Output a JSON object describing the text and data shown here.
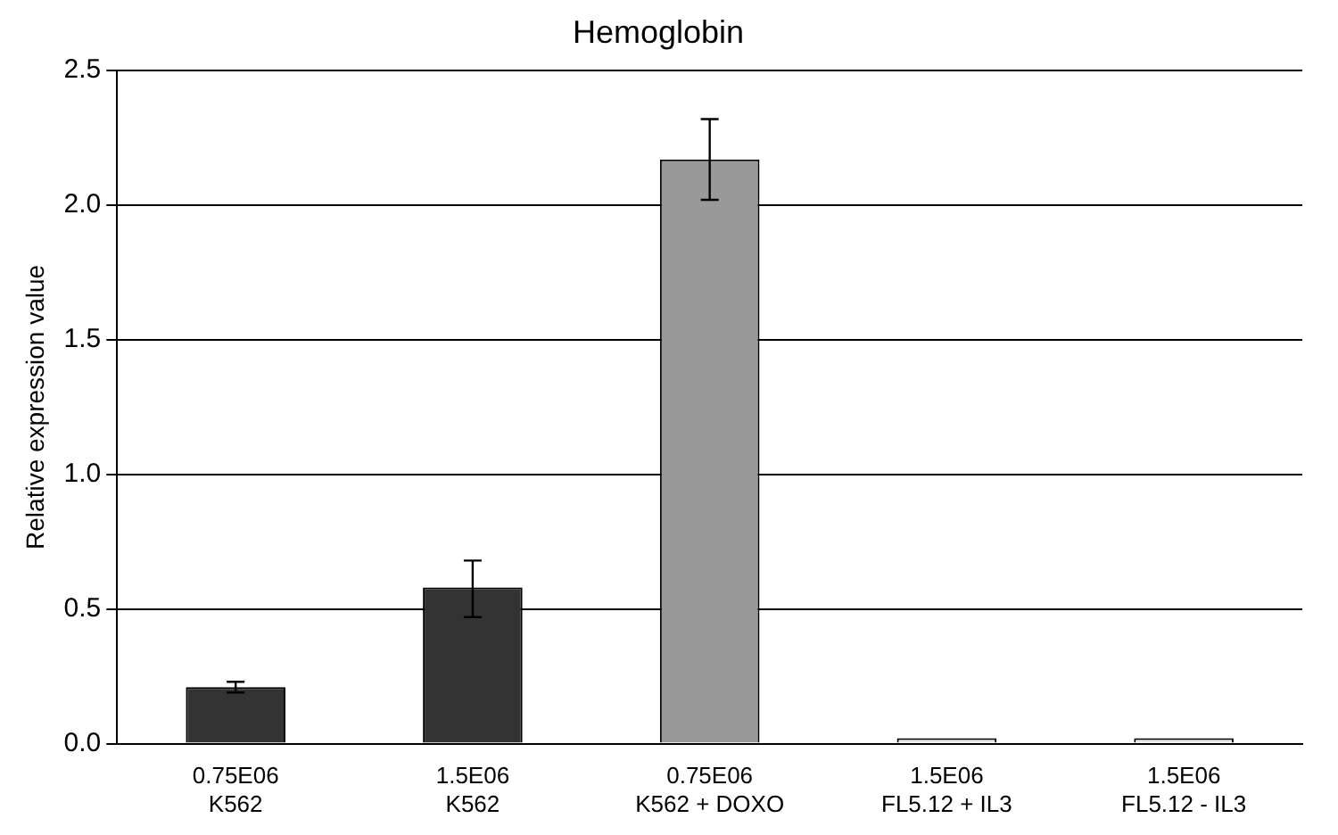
{
  "chart_data": {
    "type": "bar",
    "title": "Hemoglobin",
    "ylabel": "Relative expression value",
    "categories": [
      "0.75E06\nK562",
      "1.5E06\nK562",
      "0.75E06\nK562 + DOXO",
      "1.5E06\nFL5.12 + IL3",
      "1.5E06\nFL5.12 - IL3"
    ],
    "values": [
      0.21,
      0.58,
      2.17,
      0.02,
      0.02
    ],
    "colors": [
      "#333333",
      "#333333",
      "#999999",
      "#e6e6e6",
      "#e6e6e6"
    ],
    "errors": [
      [
        0.19,
        0.23
      ],
      [
        0.47,
        0.68
      ],
      [
        2.02,
        2.32
      ],
      null,
      null
    ],
    "ylim": [
      0,
      2.5
    ],
    "yticks": [
      {
        "value": 0,
        "label": "0.0"
      },
      {
        "value": 0.5,
        "label": "0.5"
      },
      {
        "value": 1,
        "label": "1.0"
      },
      {
        "value": 1.5,
        "label": "1.5"
      },
      {
        "value": 2,
        "label": "2.0"
      },
      {
        "value": 2.5,
        "label": "2.5"
      }
    ],
    "grid": "y",
    "legend": false
  }
}
